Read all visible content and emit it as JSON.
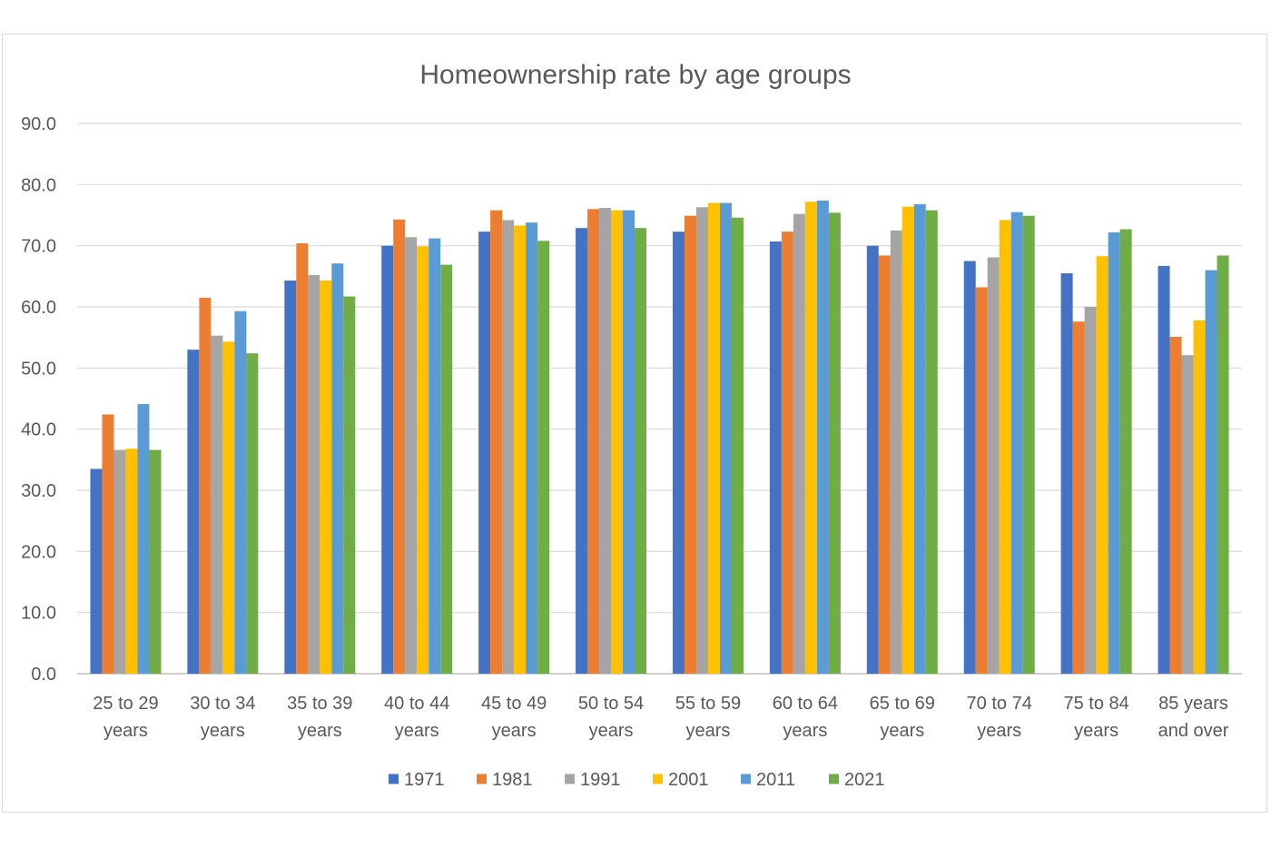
{
  "chart_data": {
    "type": "bar",
    "title": "Homeownership rate by age groups",
    "xlabel": "",
    "ylabel": "",
    "ylim": [
      0,
      90
    ],
    "yticks": [
      "0.0",
      "10.0",
      "20.0",
      "30.0",
      "40.0",
      "50.0",
      "60.0",
      "70.0",
      "80.0",
      "90.0"
    ],
    "grid": true,
    "legend_position": "bottom",
    "categories": [
      [
        "25 to 29",
        "years"
      ],
      [
        "30 to 34",
        "years"
      ],
      [
        "35 to 39",
        "years"
      ],
      [
        "40 to 44",
        "years"
      ],
      [
        "45 to 49",
        "years"
      ],
      [
        "50 to 54",
        "years"
      ],
      [
        "55 to 59",
        "years"
      ],
      [
        "60 to 64",
        "years"
      ],
      [
        "65 to 69",
        "years"
      ],
      [
        "70 to 74",
        "years"
      ],
      [
        "75 to 84",
        "years"
      ],
      [
        "85 years",
        "and over"
      ]
    ],
    "series": [
      {
        "name": "1971",
        "color": "#4472c4",
        "values": [
          33.5,
          53.0,
          64.3,
          70.0,
          72.3,
          72.9,
          72.3,
          70.7,
          70.0,
          67.5,
          65.5,
          66.7
        ]
      },
      {
        "name": "1981",
        "color": "#ed7d31",
        "values": [
          42.4,
          61.5,
          70.4,
          74.3,
          75.8,
          76.0,
          74.9,
          72.3,
          68.4,
          63.2,
          57.6,
          55.1
        ]
      },
      {
        "name": "1991",
        "color": "#a5a5a5",
        "values": [
          36.6,
          55.3,
          65.2,
          71.4,
          74.2,
          76.2,
          76.3,
          75.2,
          72.5,
          68.1,
          60.0,
          52.1
        ]
      },
      {
        "name": "2001",
        "color": "#ffc000",
        "values": [
          36.8,
          54.3,
          64.3,
          69.9,
          73.3,
          75.8,
          77.0,
          77.2,
          76.4,
          74.2,
          68.3,
          57.8
        ]
      },
      {
        "name": "2011",
        "color": "#5b9bd5",
        "values": [
          44.1,
          59.3,
          67.1,
          71.2,
          73.8,
          75.8,
          77.0,
          77.4,
          76.8,
          75.5,
          72.2,
          66.0
        ]
      },
      {
        "name": "2021",
        "color": "#70ad47",
        "values": [
          36.6,
          52.4,
          61.7,
          66.9,
          70.8,
          72.9,
          74.6,
          75.4,
          75.8,
          74.9,
          72.7,
          68.4
        ]
      }
    ]
  }
}
